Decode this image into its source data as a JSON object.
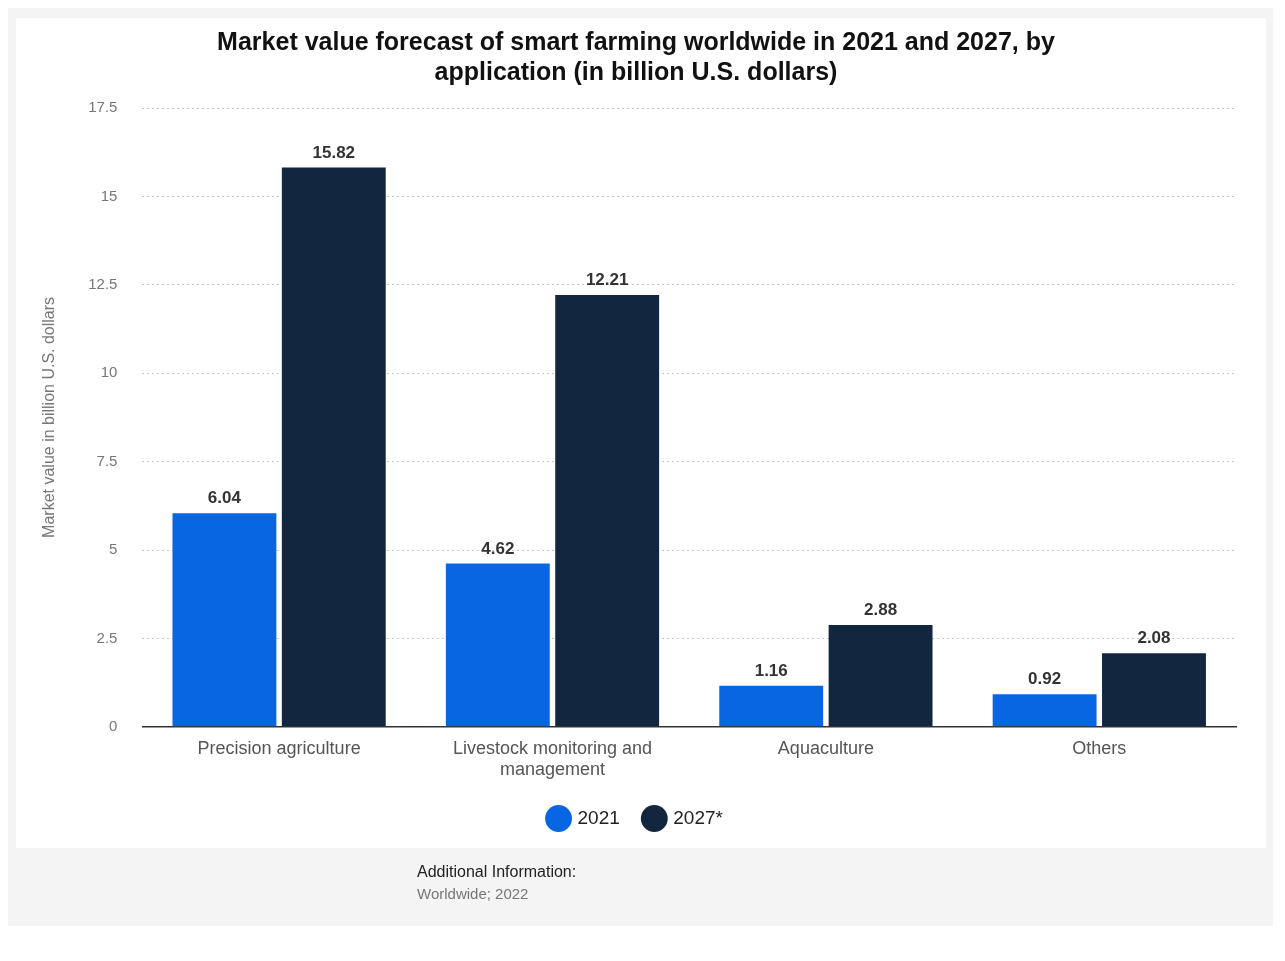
{
  "chart_data": {
    "type": "bar",
    "title": "Market value forecast of smart farming worldwide in 2021 and 2027, by application (in billion U.S. dollars)",
    "ylabel": "Market value in billion U.S. dollars",
    "categories": [
      "Precision agriculture",
      "Livestock monitoring and management",
      "Aquaculture",
      "Others"
    ],
    "series": [
      {
        "name": "2021",
        "color": "#0866e3",
        "values": [
          6.04,
          4.62,
          1.16,
          0.92
        ]
      },
      {
        "name": "2027*",
        "color": "#12263f",
        "values": [
          15.82,
          12.21,
          2.88,
          2.08
        ]
      }
    ],
    "ylim": [
      0,
      17.5
    ],
    "yticks": [
      0,
      2.5,
      5,
      7.5,
      10,
      12.5,
      15,
      17.5
    ],
    "grid": "y",
    "legend": "bottom",
    "data_labels": true,
    "annotations": [
      "Additional Information:",
      "Worldwide; 2022"
    ]
  }
}
